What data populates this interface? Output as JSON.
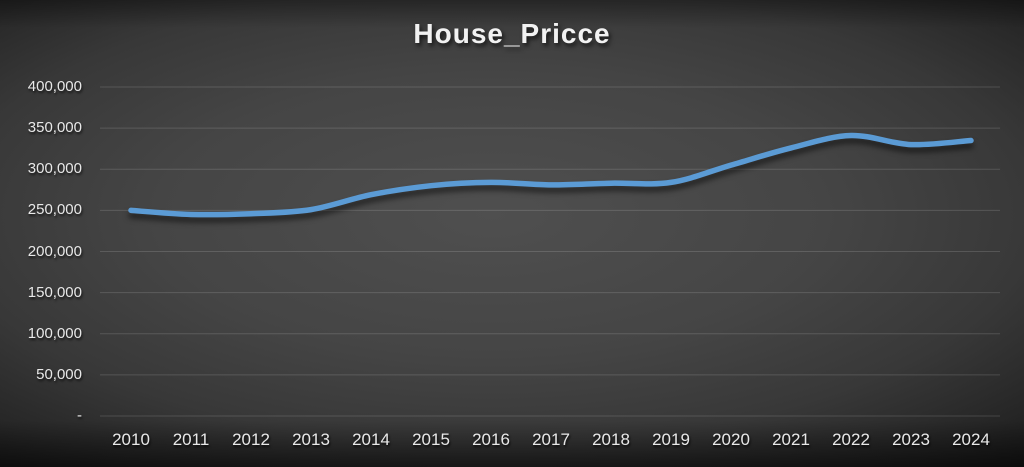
{
  "chart_data": {
    "type": "line",
    "title": "House_Pricce",
    "categories": [
      "2010",
      "2011",
      "2012",
      "2013",
      "2014",
      "2015",
      "2016",
      "2017",
      "2018",
      "2019",
      "2020",
      "2021",
      "2022",
      "2023",
      "2024"
    ],
    "series": [
      {
        "name": "House_Pricce",
        "values": [
          250000,
          245000,
          246000,
          251000,
          269000,
          280000,
          284000,
          281000,
          283000,
          284000,
          305000,
          326000,
          341000,
          330000,
          335000
        ]
      }
    ],
    "xlabel": "",
    "ylabel": "",
    "ylim": [
      0,
      400000
    ],
    "ytick_step": 50000,
    "y_tick_labels": [
      "-",
      "50,000",
      "100,000",
      "150,000",
      "200,000",
      "250,000",
      "300,000",
      "350,000",
      "400,000"
    ],
    "grid": true,
    "legend_position": "none",
    "line_style": "smoothed",
    "colors": {
      "line": "#5B9BD5",
      "gridline": "rgba(255,255,255,0.14)",
      "label_text": "#e8e8e8",
      "title_text": "#f2f2f2",
      "background_center": "#4f4f4f",
      "background_edge": "#1a1a1a"
    }
  }
}
